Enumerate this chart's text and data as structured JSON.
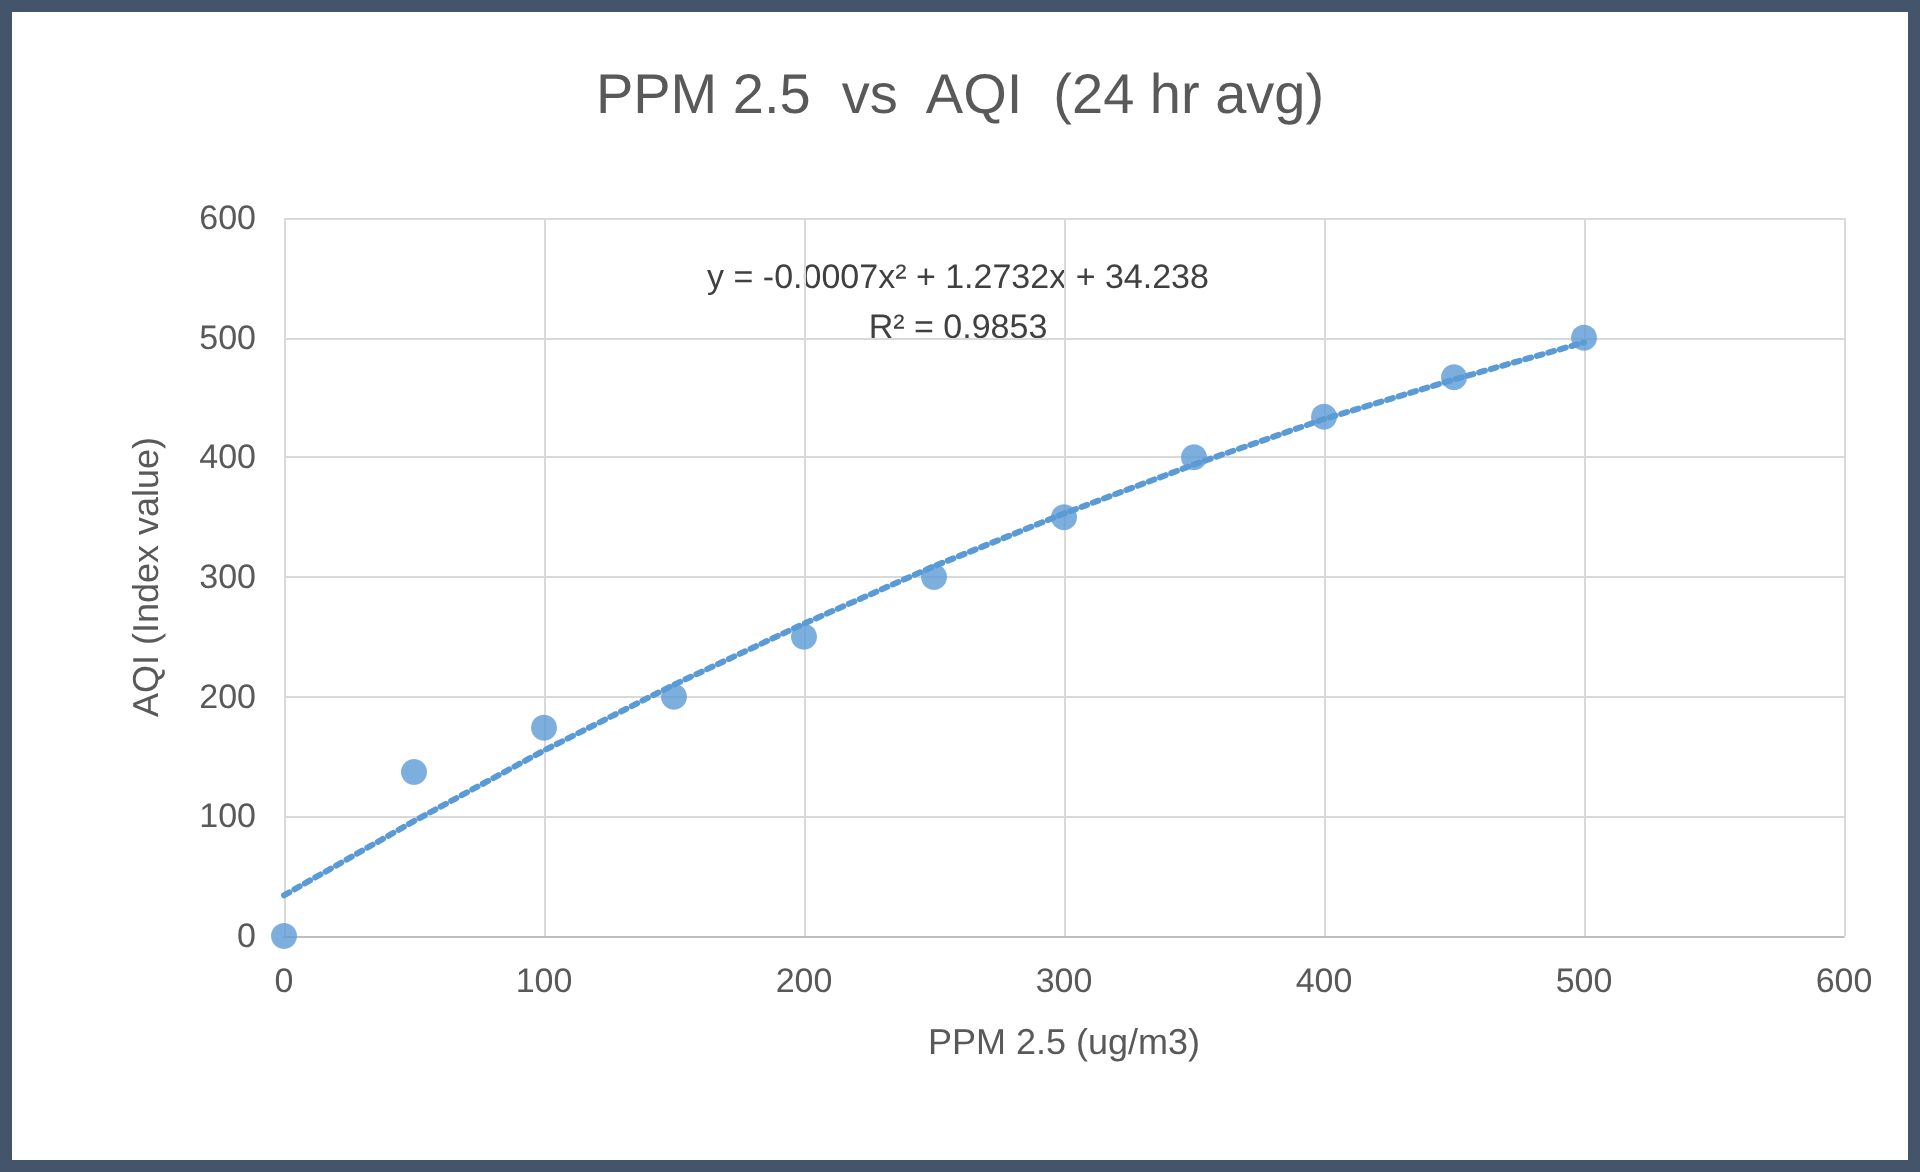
{
  "chart_data": {
    "type": "scatter",
    "title": "PPM 2.5  vs  AQI  (24 hr avg)",
    "xlabel": "PPM 2.5 (ug/m3)",
    "ylabel": "AQI (Index value)",
    "x": [
      0,
      50,
      100,
      150,
      200,
      250,
      300,
      350,
      400,
      450,
      500
    ],
    "series": [
      {
        "color": "#5b9bd5",
        "marker": "circle",
        "values": [
          0,
          137,
          174,
          200,
          250,
          300,
          350,
          400,
          434,
          467,
          500
        ]
      },
      {
        "type": "line",
        "color": "#5b9bd5",
        "marker": "none",
        "line_style": "dotted",
        "x": [
          0,
          50,
          100,
          150,
          200,
          250,
          300,
          350,
          400,
          450,
          500
        ],
        "values": [
          34,
          96,
          155,
          210,
          261,
          309,
          353,
          394,
          432,
          465,
          496
        ]
      }
    ],
    "annotations": [
      "y = -0.0007x² + 1.2732x + 34.238",
      "R² = 0.9853"
    ],
    "xlim": [
      0,
      600
    ],
    "xticks": [
      0,
      100,
      200,
      300,
      400,
      500,
      600
    ],
    "ylim": [
      0,
      600
    ],
    "yticks": [
      0,
      100,
      200,
      300,
      400,
      500,
      600
    ],
    "grid": true
  }
}
